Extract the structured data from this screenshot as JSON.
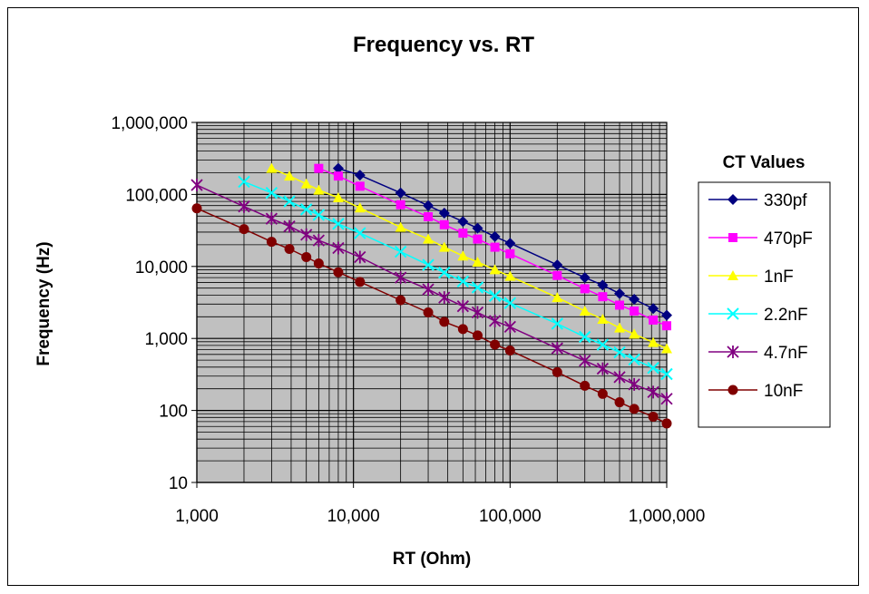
{
  "chart_data": {
    "type": "scatter",
    "title": "Frequency vs. RT",
    "xlabel": "RT (Ohm)",
    "ylabel": "Frequency (Hz)",
    "xscale": "log",
    "yscale": "log",
    "xlim": [
      1000,
      1000000
    ],
    "ylim": [
      10,
      1000000
    ],
    "xticks": [
      1000,
      10000,
      100000,
      1000000
    ],
    "xtick_labels": [
      "1,000",
      "10,000",
      "100,000",
      "1,000,000"
    ],
    "yticks": [
      10,
      100,
      1000,
      10000,
      100000,
      1000000
    ],
    "ytick_labels": [
      "10",
      "100",
      "1,000",
      "10,000",
      "100,000",
      "1,000,000"
    ],
    "grid": true,
    "plot_background": "#c0c0c0",
    "legend": {
      "title": "CT Values",
      "placement": "right"
    },
    "series": [
      {
        "name": "330pf",
        "color": "#000080",
        "marker": "diamond",
        "x": [
          8000,
          11000,
          20000,
          30000,
          38000,
          50000,
          62000,
          80000,
          100000,
          200000,
          300000,
          390000,
          500000,
          620000,
          820000,
          1000000
        ],
        "y": [
          230000,
          185000,
          105000,
          70000,
          55000,
          42000,
          34000,
          26000,
          21000,
          10500,
          7000,
          5500,
          4200,
          3500,
          2600,
          2100
        ]
      },
      {
        "name": "470pF",
        "color": "#ff00ff",
        "marker": "square",
        "x": [
          6000,
          8000,
          11000,
          20000,
          30000,
          38000,
          50000,
          62000,
          80000,
          100000,
          200000,
          300000,
          390000,
          500000,
          620000,
          820000,
          1000000
        ],
        "y": [
          230000,
          180000,
          130000,
          72000,
          49000,
          38000,
          29000,
          24000,
          18500,
          15000,
          7500,
          4900,
          3800,
          2900,
          2400,
          1800,
          1500
        ]
      },
      {
        "name": "1nF",
        "color": "#ffff00",
        "marker": "triangle",
        "x": [
          3000,
          3900,
          5000,
          6000,
          8000,
          11000,
          20000,
          30000,
          38000,
          50000,
          62000,
          80000,
          100000,
          200000,
          300000,
          390000,
          500000,
          620000,
          820000,
          1000000
        ],
        "y": [
          230000,
          180000,
          140000,
          115000,
          90000,
          65000,
          35000,
          24000,
          18500,
          14000,
          11500,
          9000,
          7300,
          3700,
          2400,
          1850,
          1400,
          1150,
          880,
          720
        ]
      },
      {
        "name": "2.2nF",
        "color": "#00ffff",
        "marker": "x",
        "x": [
          2000,
          3000,
          3900,
          5000,
          6000,
          8000,
          11000,
          20000,
          30000,
          38000,
          50000,
          62000,
          80000,
          100000,
          200000,
          300000,
          390000,
          500000,
          620000,
          820000,
          1000000
        ],
        "y": [
          150000,
          105000,
          80000,
          62000,
          52000,
          39000,
          29000,
          16000,
          10500,
          8200,
          6200,
          5100,
          3900,
          3100,
          1600,
          1050,
          820,
          640,
          510,
          390,
          320
        ]
      },
      {
        "name": "4.7nF",
        "color": "#800080",
        "marker": "star",
        "x": [
          1000,
          2000,
          3000,
          3900,
          5000,
          6000,
          8000,
          11000,
          20000,
          30000,
          38000,
          50000,
          62000,
          80000,
          100000,
          200000,
          300000,
          390000,
          500000,
          620000,
          820000,
          1000000
        ],
        "y": [
          135000,
          68000,
          46000,
          36000,
          27500,
          23000,
          18000,
          13500,
          7000,
          4800,
          3700,
          2800,
          2300,
          1750,
          1450,
          730,
          490,
          380,
          290,
          230,
          180,
          145
        ]
      },
      {
        "name": "10nF",
        "color": "#800000",
        "marker": "circle",
        "x": [
          1000,
          2000,
          3000,
          3900,
          5000,
          6000,
          8000,
          11000,
          20000,
          30000,
          38000,
          50000,
          62000,
          80000,
          100000,
          200000,
          300000,
          390000,
          500000,
          620000,
          820000,
          1000000
        ],
        "y": [
          64000,
          33000,
          22000,
          17500,
          13500,
          11000,
          8300,
          6100,
          3400,
          2300,
          1700,
          1350,
          1100,
          820,
          680,
          340,
          220,
          170,
          130,
          105,
          82,
          66
        ]
      }
    ]
  }
}
